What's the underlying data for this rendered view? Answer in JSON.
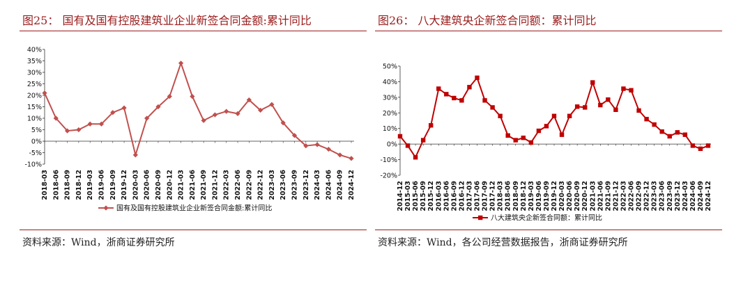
{
  "panels": [
    {
      "title": "图25：  国有及国有控股建筑业企业新签合同金额:累计同比",
      "source": "资料来源：Wind，浙商证券研究所"
    },
    {
      "title": "图26：  八大建筑央企新签合同额：累计同比",
      "source": "资料来源：Wind，各公司经营数据报告，浙商证券研究所"
    }
  ],
  "colors": {
    "accent": "#9b1c1c",
    "line_left": "#c0504d",
    "line_right": "#c00000"
  },
  "chart_data": [
    {
      "type": "line",
      "marker": "diamond",
      "x": [
        "2018-03",
        "2018-06",
        "2018-09",
        "2018-12",
        "2019-03",
        "2019-06",
        "2019-09",
        "2019-12",
        "2020-03",
        "2020-06",
        "2020-09",
        "2020-12",
        "2021-03",
        "2021-06",
        "2021-09",
        "2021-12",
        "2022-03",
        "2022-06",
        "2022-09",
        "2022-12",
        "2023-03",
        "2023-06",
        "2023-09",
        "2023-12",
        "2024-03",
        "2024-06",
        "2024-09",
        "2024-12"
      ],
      "series": [
        {
          "name": "国有及国有控股建筑业企业新签合同金额:累计同比",
          "values": [
            21,
            10,
            4.5,
            5,
            7.5,
            7.5,
            12.5,
            14.5,
            -6,
            10,
            15,
            19.5,
            34,
            19.5,
            9,
            11.5,
            13,
            12,
            18,
            13.5,
            16,
            8,
            2.5,
            -2,
            -1.5,
            -3.5,
            -6,
            -7.5
          ]
        }
      ],
      "yticks": [
        "40%",
        "35%",
        "30%",
        "25%",
        "20%",
        "15%",
        "10%",
        "5%",
        "0%",
        "-5%",
        "-10%"
      ],
      "ylim": [
        -10,
        40
      ],
      "legend": "bottom"
    },
    {
      "type": "line",
      "marker": "square",
      "x": [
        "2014-12",
        "2015-03",
        "2015-06",
        "2015-09",
        "2015-12",
        "2016-03",
        "2016-06",
        "2016-09",
        "2016-12",
        "2017-03",
        "2017-06",
        "2017-09",
        "2017-12",
        "2018-03",
        "2018-06",
        "2018-09",
        "2018-12",
        "2019-03",
        "2019-06",
        "2019-09",
        "2019-12",
        "2020-03",
        "2020-06",
        "2020-09",
        "2020-12",
        "2021-03",
        "2021-06",
        "2021-09",
        "2021-12",
        "2022-03",
        "2022-06",
        "2022-09",
        "2022-12",
        "2023-03",
        "2023-06",
        "2023-09",
        "2023-12",
        "2024-03",
        "2024-06",
        "2024-09",
        "2024-12"
      ],
      "series": [
        {
          "name": "八大建筑央企新签合同额：累计同比",
          "values": [
            5,
            -1,
            -8.5,
            2.5,
            12,
            35.5,
            32,
            29.5,
            28,
            36.5,
            42.5,
            28,
            23.5,
            18,
            5.5,
            2.5,
            4,
            1,
            8.5,
            11.5,
            18,
            6,
            18,
            24,
            23.5,
            39.5,
            25,
            28.5,
            22,
            35.5,
            34.5,
            21.5,
            16,
            12.5,
            8,
            5,
            7.5,
            6,
            -1,
            -3,
            -1
          ]
        }
      ],
      "yticks": [
        "50%",
        "40%",
        "30%",
        "20%",
        "10%",
        "0%",
        "-10%",
        "-20%"
      ],
      "ylim": [
        -20,
        50
      ],
      "legend": "bottom"
    }
  ]
}
